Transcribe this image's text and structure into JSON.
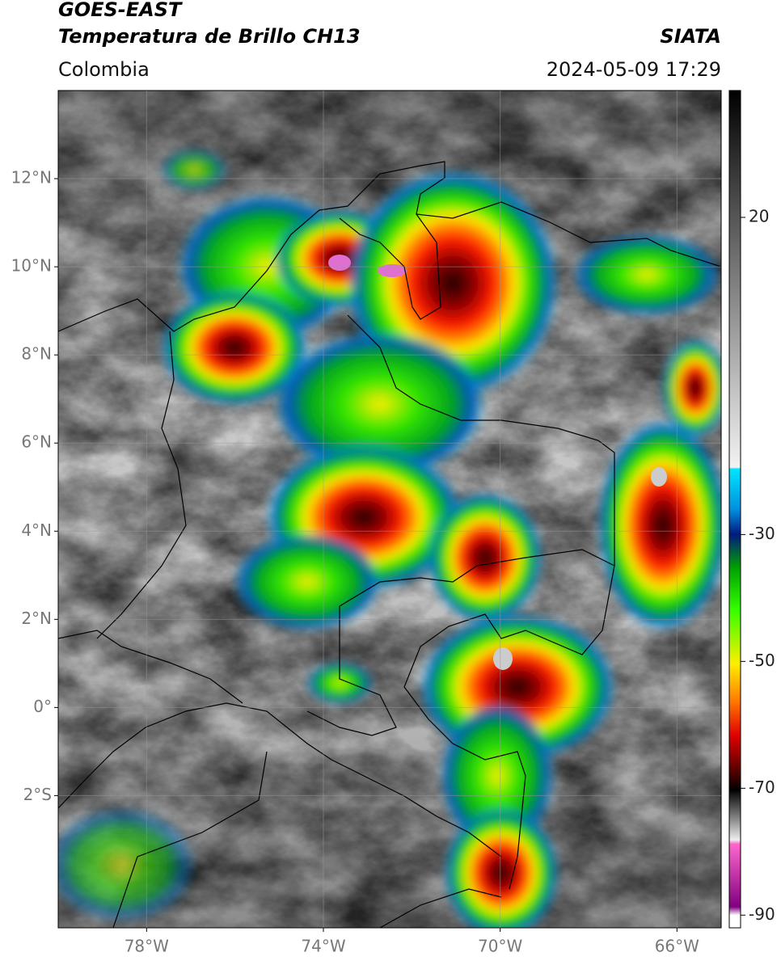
{
  "header": {
    "title": "GOES-EAST",
    "subtitle": "Temperatura de Brillo CH13",
    "source": "SIATA",
    "region": "Colombia",
    "timestamp": "2024-05-09 17:29"
  },
  "map": {
    "xlim": [
      -80,
      -65
    ],
    "ylim": [
      -5,
      14
    ],
    "xticks": [
      {
        "value": -78,
        "label": "78°W"
      },
      {
        "value": -74,
        "label": "74°W"
      },
      {
        "value": -70,
        "label": "70°W"
      },
      {
        "value": -66,
        "label": "66°W"
      }
    ],
    "yticks": [
      {
        "value": 12,
        "label": "12°N"
      },
      {
        "value": 10,
        "label": "10°N"
      },
      {
        "value": 8,
        "label": "8°N"
      },
      {
        "value": 6,
        "label": "6°N"
      },
      {
        "value": 4,
        "label": "4°N"
      },
      {
        "value": 2,
        "label": "2°N"
      },
      {
        "value": 0,
        "label": "0°"
      },
      {
        "value": -2,
        "label": "2°S"
      }
    ],
    "grid": true
  },
  "colorbar": {
    "ylim": [
      -92,
      40
    ],
    "yticks": [
      20,
      -30,
      -50,
      -70,
      -90
    ]
  }
}
